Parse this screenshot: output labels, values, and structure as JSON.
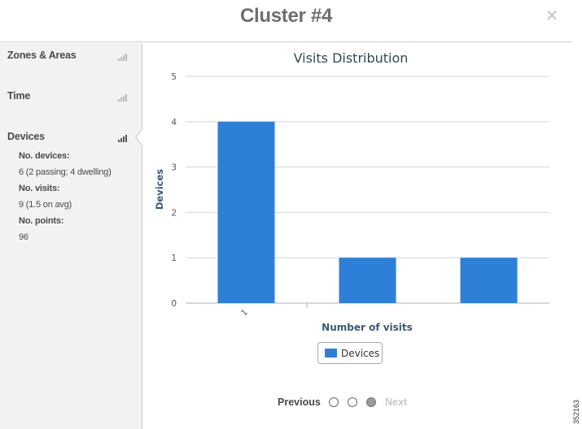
{
  "dialog": {
    "title": "Cluster #4",
    "close_glyph": "✕"
  },
  "sidebar": {
    "items": [
      {
        "label": "Zones & Areas",
        "icon": "bar-chart-icon",
        "active": false
      },
      {
        "label": "Time",
        "icon": "bar-chart-icon",
        "active": false
      },
      {
        "label": "Devices",
        "icon": "bar-chart-icon",
        "active": true
      }
    ],
    "stats": {
      "devices_label": "No. devices:",
      "devices_value": "6 (2 passing; 4 dwelling)",
      "visits_label": "No. visits:",
      "visits_value": "9 (1.5 on avg)",
      "points_label": "No. points:",
      "points_value": "96"
    }
  },
  "chart_data": {
    "type": "bar",
    "title": "Visits Distribution",
    "xlabel": "Number of visits",
    "ylabel": "Devices",
    "categories": [
      "1",
      "",
      ""
    ],
    "series": [
      {
        "name": "Devices",
        "values": [
          4,
          1,
          1
        ],
        "color": "#2e7fd7"
      }
    ],
    "ylim": [
      0,
      5
    ],
    "yticks": [
      0,
      1,
      2,
      3,
      4,
      5
    ],
    "grid": true,
    "legend": "bottom-center"
  },
  "pager": {
    "prev_label": "Previous",
    "next_label": "Next",
    "pages": 3,
    "current": 3
  },
  "figure_code": "352163"
}
